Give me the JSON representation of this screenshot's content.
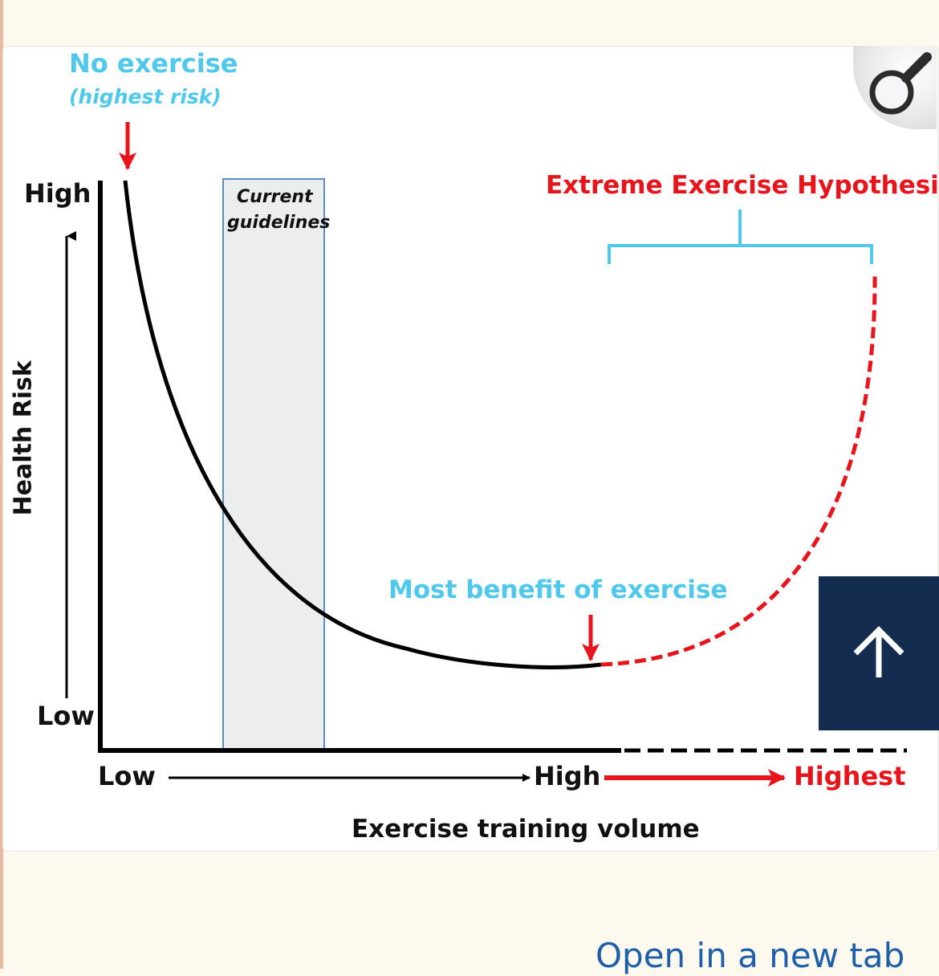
{
  "figure": {
    "no_exercise": "No exercise",
    "highest_risk": "(highest risk)",
    "y_high": "High",
    "y_low": "Low",
    "y_axis_label": "Health Risk",
    "guidelines_line1": "Current",
    "guidelines_line2": "guidelines",
    "extreme_hypothesis": "Extreme Exercise Hypothesis",
    "most_benefit": "Most benefit of exercise",
    "x_low": "Low",
    "x_high": "High",
    "x_highest": "Highest",
    "x_axis_label": "Exercise training volume"
  },
  "colors": {
    "cyan": "#4fc8ec",
    "red": "#e8141c",
    "curve": "#000000",
    "band_fill": "#eceded",
    "band_border": "#5b8dc9",
    "nav_button": "#132c4f",
    "link": "#1d5fa8"
  },
  "icons": {
    "zoom": "magnifier-icon",
    "scroll_top": "arrow-up-icon"
  },
  "link": {
    "open_new_tab": "Open in a new tab"
  }
}
